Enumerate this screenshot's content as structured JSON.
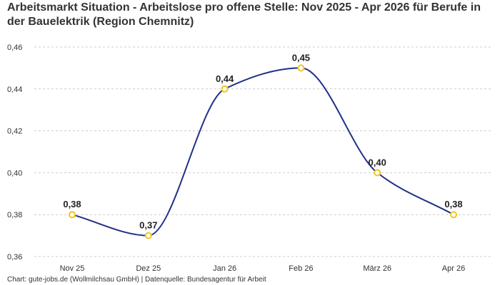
{
  "chart_data": {
    "type": "line",
    "title": "Arbeitsmarkt Situation - Arbeitslose pro offene Stelle: Nov 2025 - Apr 2026 für Berufe in der Bauelektrik (Region Chemnitz)",
    "xlabel": "",
    "ylabel": "",
    "categories": [
      "Nov 25",
      "Dez 25",
      "Jan 26",
      "Feb 26",
      "März 26",
      "Apr 26"
    ],
    "values": [
      0.38,
      0.37,
      0.44,
      0.45,
      0.4,
      0.38
    ],
    "data_labels": [
      "0,38",
      "0,37",
      "0,44",
      "0,45",
      "0,40",
      "0,38"
    ],
    "ylim": [
      0.36,
      0.46
    ],
    "y_ticks": [
      0.36,
      0.38,
      0.4,
      0.42,
      0.44,
      0.46
    ],
    "y_tick_labels": [
      "0,36",
      "0,38",
      "0,40",
      "0,42",
      "0,44",
      "0,46"
    ],
    "grid": true,
    "smooth": true,
    "colors": {
      "line": "#1f2f8a",
      "marker": "#f2c51d",
      "grid": "#cccccc"
    }
  },
  "source": "Chart: gute-jobs.de (Wollmilchsau GmbH) | Datenquelle: Bundesagentur für Arbeit"
}
